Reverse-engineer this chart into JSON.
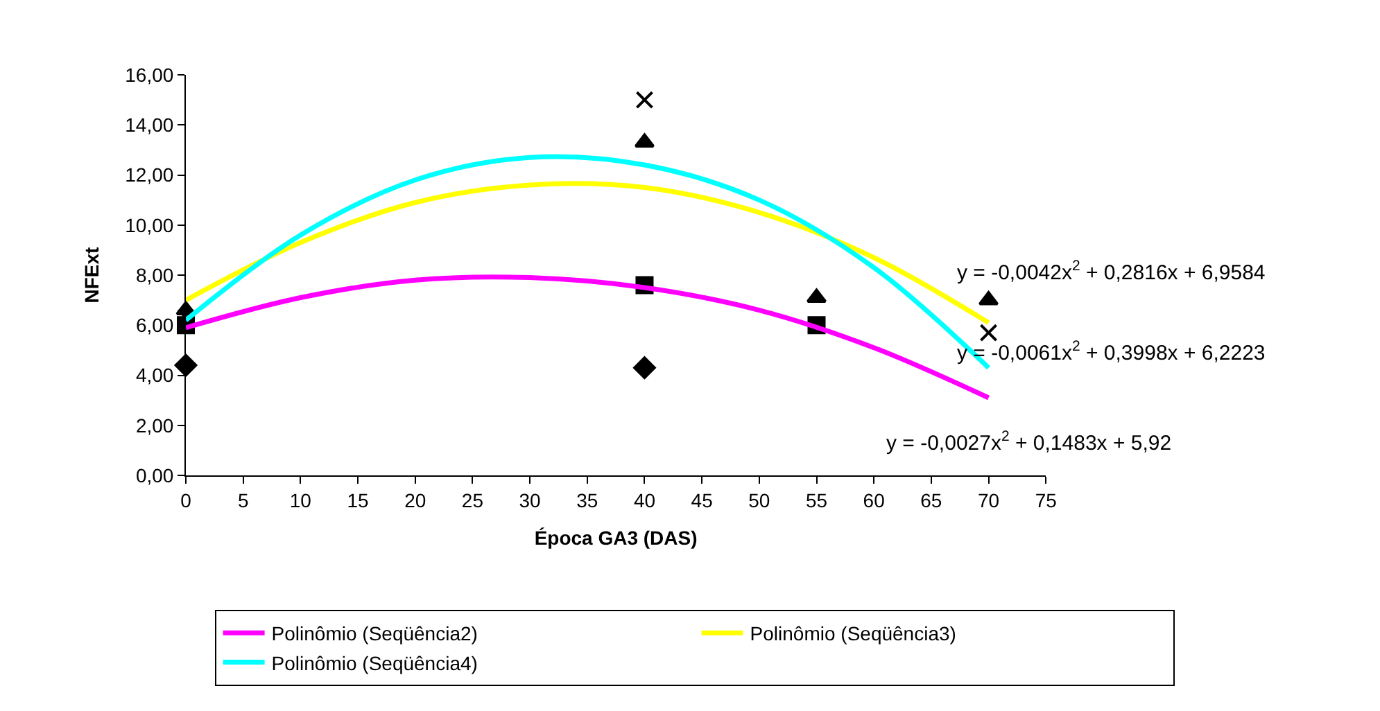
{
  "chart_data": {
    "type": "scatter",
    "xlabel": "Época GA3 (DAS)",
    "ylabel": "NFExt",
    "xlim": [
      0,
      75
    ],
    "xticks": [
      0,
      5,
      10,
      15,
      20,
      25,
      30,
      35,
      40,
      45,
      50,
      55,
      60,
      65,
      70,
      75
    ],
    "ylim": [
      0,
      16
    ],
    "yticks": [
      {
        "value": 0,
        "label": "0,00"
      },
      {
        "value": 2,
        "label": "2,00"
      },
      {
        "value": 4,
        "label": "4,00"
      },
      {
        "value": 6,
        "label": "6,00"
      },
      {
        "value": 8,
        "label": "8,00"
      },
      {
        "value": 10,
        "label": "10,00"
      },
      {
        "value": 12,
        "label": "12,00"
      },
      {
        "value": 14,
        "label": "14,00"
      },
      {
        "value": 16,
        "label": "16,00"
      }
    ],
    "legend": "bottom",
    "series": [
      {
        "marker": "diamond",
        "color": "#000000",
        "x": [
          0,
          40
        ],
        "values": [
          4.4,
          4.3
        ]
      },
      {
        "marker": "square",
        "color": "#000000",
        "x": [
          0,
          40,
          55
        ],
        "values": [
          6.0,
          7.6,
          6.0
        ]
      },
      {
        "marker": "triangle",
        "color": "#000000",
        "x": [
          0,
          40,
          55,
          70
        ],
        "values": [
          6.6,
          13.3,
          7.1,
          7.0
        ]
      },
      {
        "marker": "cross",
        "color": "#000000",
        "x": [
          0,
          40,
          70
        ],
        "values": [
          6.3,
          15.0,
          5.7
        ]
      },
      {
        "type": "line",
        "name": "Polinômio (Seqüência2)",
        "color": "#ff00ff",
        "x": [
          0,
          10,
          20,
          30,
          40,
          50,
          60,
          70
        ],
        "values": [
          5.9,
          7.1,
          7.8,
          7.9,
          7.5,
          6.6,
          5.1,
          3.1
        ]
      },
      {
        "type": "line",
        "name": "Polinômio (Seqüência3)",
        "color": "#ffff00",
        "x": [
          0,
          10,
          20,
          30,
          40,
          50,
          60,
          70
        ],
        "values": [
          7.0,
          9.3,
          10.9,
          11.6,
          11.5,
          10.5,
          8.7,
          6.1
        ]
      },
      {
        "type": "line",
        "name": "Polinômio (Seqüência4)",
        "color": "#00ffff",
        "x": [
          0,
          10,
          20,
          30,
          40,
          50,
          60,
          70
        ],
        "values": [
          6.2,
          9.6,
          11.8,
          12.7,
          12.4,
          11.0,
          8.3,
          4.3
        ]
      }
    ],
    "annotations": [
      "y = -0,0042x$^{2}$ + 0,2816x + 6,9584",
      "y = -0,0061x$^{2}$ + 0,3998x + 6,2223",
      "y = -0,0027x$^{2}$ + 0,1483x + 5,92"
    ]
  }
}
